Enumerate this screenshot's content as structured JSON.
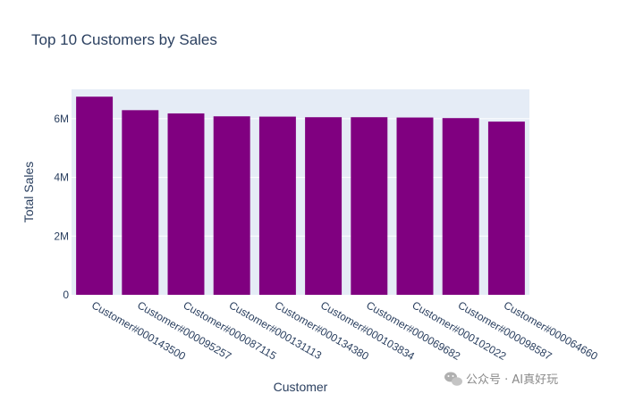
{
  "chart_data": {
    "type": "bar",
    "title": "Top 10 Customers by Sales",
    "xlabel": "Customer",
    "ylabel": "Total Sales",
    "categories": [
      "Customer#000143500",
      "Customer#000095257",
      "Customer#000087115",
      "Customer#000131113",
      "Customer#000134380",
      "Customer#000103834",
      "Customer#000069682",
      "Customer#000102022",
      "Customer#000098587",
      "Customer#000064660"
    ],
    "values": [
      6750000,
      6290000,
      6180000,
      6080000,
      6070000,
      6050000,
      6050000,
      6040000,
      6020000,
      5900000
    ],
    "ylim": [
      0,
      7000000
    ],
    "yticks": [
      0,
      2000000,
      4000000,
      6000000
    ],
    "ytick_labels": [
      "0",
      "2M",
      "4M",
      "6M"
    ],
    "grid": true,
    "bar_color": "#800080",
    "plot_bg": "#e5ecf6",
    "gridline_color": "#ffffff"
  },
  "watermark": {
    "text": "公众号 · AI真好玩",
    "icon": "wechat-icon"
  }
}
